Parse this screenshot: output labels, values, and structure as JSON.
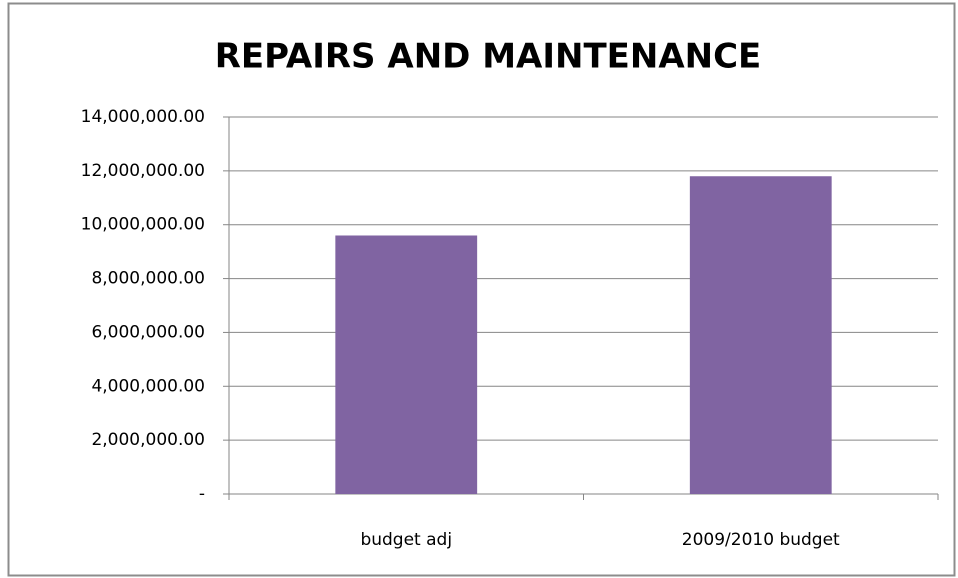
{
  "chart_data": {
    "type": "bar",
    "title": "REPAIRS AND MAINTENANCE",
    "categories": [
      "budget adj",
      "2009/2010 budget"
    ],
    "values": [
      9600000,
      11800000
    ],
    "color": "#8064a2",
    "ylim": [
      0,
      14000000
    ],
    "yticks": [
      {
        "value": 0,
        "label": "-"
      },
      {
        "value": 2000000,
        "label": "2,000,000.00"
      },
      {
        "value": 4000000,
        "label": "4,000,000.00"
      },
      {
        "value": 6000000,
        "label": "6,000,000.00"
      },
      {
        "value": 8000000,
        "label": "8,000,000.00"
      },
      {
        "value": 10000000,
        "label": "10,000,000.00"
      },
      {
        "value": 12000000,
        "label": "12,000,000.00"
      },
      {
        "value": 14000000,
        "label": "14,000,000.00"
      }
    ],
    "grid": true
  }
}
